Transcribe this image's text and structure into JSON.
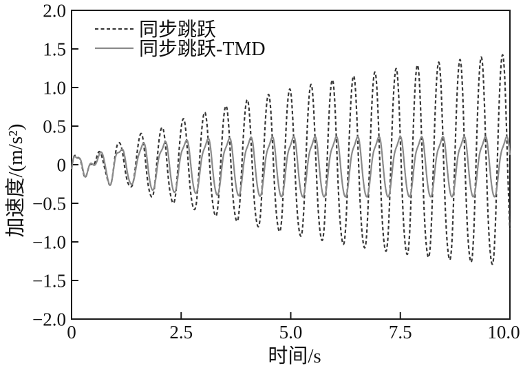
{
  "figure": {
    "background": "#ffffff",
    "frame_color": "#1a1a1a",
    "text_color": "#111111"
  },
  "chart_data": {
    "type": "line",
    "title": "",
    "xlabel": "时间/s",
    "ylabel": "加速度/(m/s²)",
    "xlim": [
      0,
      10
    ],
    "ylim": [
      -2.0,
      2.0
    ],
    "grid": false,
    "legend_position": "top-left-inside",
    "x_ticks": [
      0,
      2.5,
      5,
      7.5,
      10
    ],
    "x_tick_labels": [
      "0",
      "2.5",
      "5.0",
      "7.5",
      "10.0"
    ],
    "y_ticks": [
      2,
      1.5,
      1,
      0.5,
      0,
      -0.5,
      -1,
      -1.5,
      -2
    ],
    "y_tick_labels": [
      "2.0",
      "1.5",
      "1.0",
      "0.5",
      "0",
      "−0.5",
      "−1.0",
      "−1.5",
      "−2.0"
    ],
    "excitation_frequency_hz": 2.06,
    "series": [
      {
        "name": "同步跳跃",
        "line_style": "dashed",
        "color": "#383838",
        "envelope_t_s": [
          0,
          1,
          2,
          3,
          4,
          5,
          6,
          7,
          8,
          9,
          10
        ],
        "envelope_amplitude": [
          0.03,
          0.26,
          0.47,
          0.66,
          0.82,
          0.96,
          1.08,
          1.18,
          1.27,
          1.34,
          1.4
        ],
        "final_peak_m_s2": 1.4,
        "behavior": "resonant build-up, amplitude grows over full 10 s"
      },
      {
        "name": "同步跳跃-TMD",
        "line_style": "solid",
        "color": "#8a8a8a",
        "envelope_t_s": [
          0,
          1,
          2,
          3,
          4,
          5,
          6,
          7,
          8,
          9,
          10
        ],
        "envelope_amplitude": [
          0.03,
          0.22,
          0.31,
          0.35,
          0.37,
          0.38,
          0.38,
          0.38,
          0.38,
          0.38,
          0.38
        ],
        "steady_state_peak_m_s2": 0.37,
        "steady_state_trough_m_s2": -0.42,
        "behavior": "TMD-controlled response saturates at ~±0.4 after ~3 s"
      }
    ]
  }
}
